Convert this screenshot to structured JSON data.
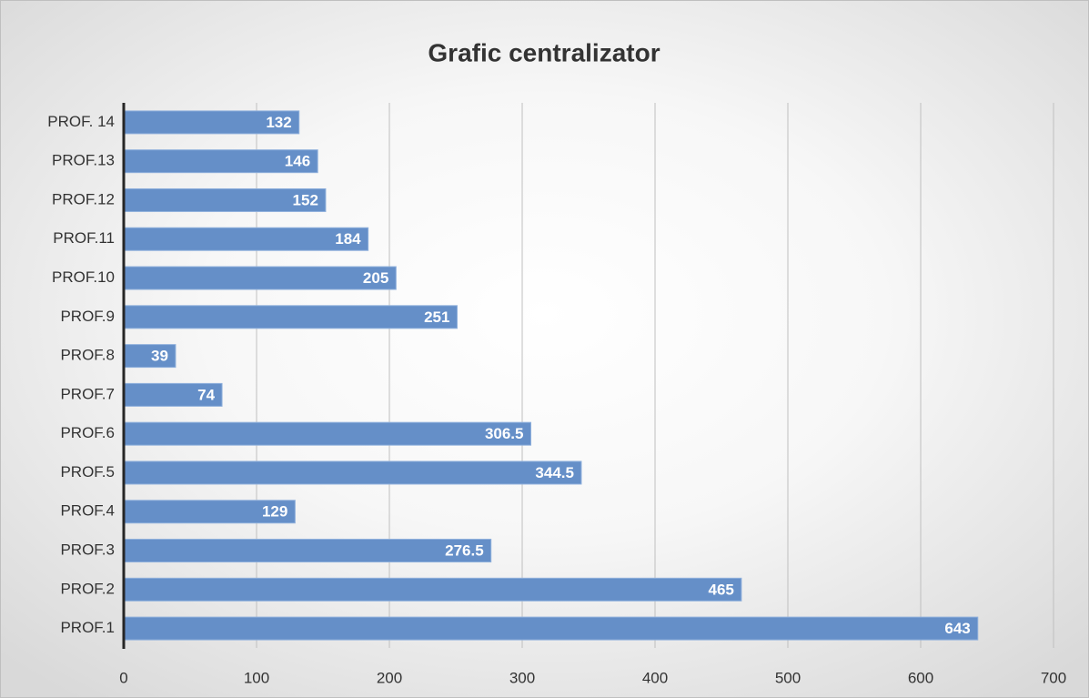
{
  "chart_data": {
    "type": "bar",
    "orientation": "horizontal",
    "title": "Grafic centralizator",
    "categories": [
      "PROF.1",
      "PROF.2",
      "PROF.3",
      "PROF.4",
      "PROF.5",
      "PROF.6",
      "PROF.7",
      "PROF.8",
      "PROF.9",
      "PROF.10",
      "PROF.11",
      "PROF.12",
      "PROF.13",
      "PROF. 14"
    ],
    "values": [
      643,
      465,
      276.5,
      129,
      344.5,
      306.5,
      74,
      39,
      251,
      205,
      184,
      152,
      146,
      132
    ],
    "color": "#658fc8",
    "xlim": [
      0,
      700
    ],
    "xticks": [
      0,
      100,
      200,
      300,
      400,
      500,
      600,
      700
    ],
    "grid": true
  }
}
